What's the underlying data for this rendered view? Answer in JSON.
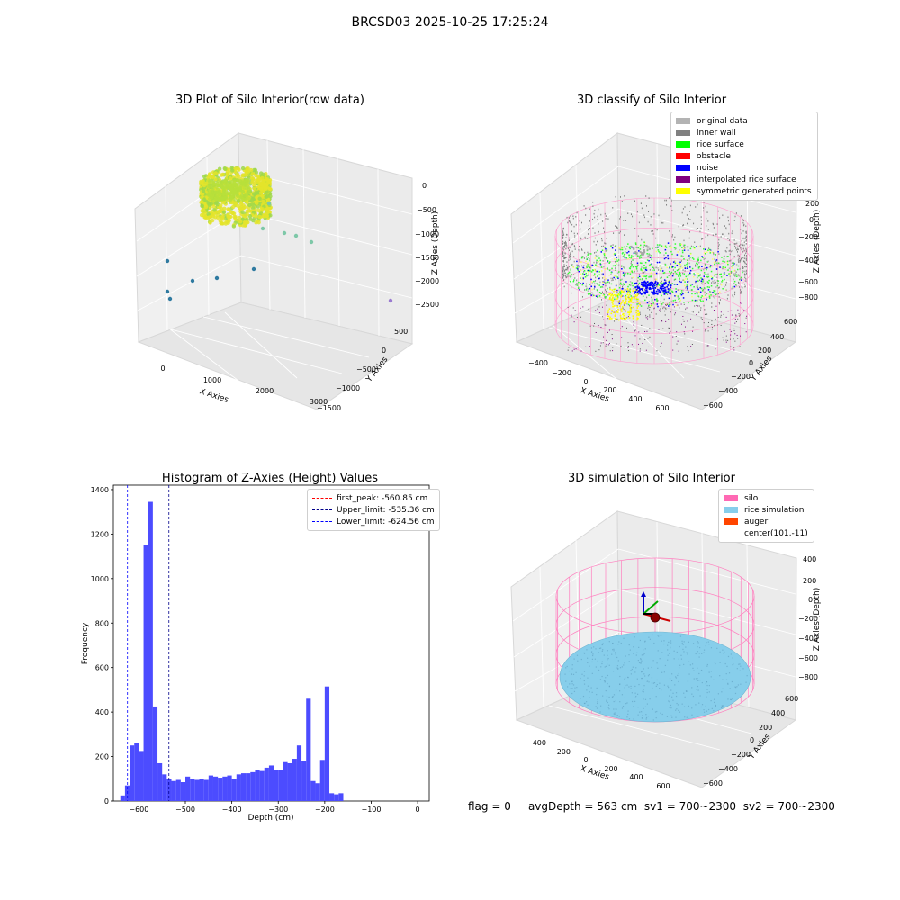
{
  "figure_title": "BRCSD03 2025-10-25 17:25:24",
  "status": {
    "flag": "flag = 0",
    "avg_depth": "avgDepth = 563 cm",
    "sv1": "sv1 = 700~2300",
    "sv2": "sv2 = 700~2300"
  },
  "chart_data": [
    {
      "type": "scatter",
      "title": "3D Plot of Silo Interior(row data)",
      "xlabel": "X Axies",
      "ylabel": "Y Axies",
      "zlabel": "Z Axies (Depth)",
      "x_ticks": [
        "0",
        "1000",
        "2000",
        "3000"
      ],
      "y_ticks": [
        "500",
        "0",
        "−500",
        "−1000",
        "−1500"
      ],
      "z_ticks": [
        "0",
        "−500",
        "−1000",
        "−1500",
        "−2000",
        "−2500"
      ],
      "colors": {
        "high": "#e4e42a",
        "low": "#2f7aa0"
      }
    },
    {
      "type": "scatter",
      "title": "3D classify of Silo Interior",
      "xlabel": "X Axies",
      "ylabel": "Y Axies",
      "zlabel": "Z Axies (Depth)",
      "x_ticks": [
        "−400",
        "−200",
        "0",
        "200",
        "400",
        "600"
      ],
      "y_ticks": [
        "600",
        "400",
        "200",
        "0",
        "−200",
        "−400",
        "−600"
      ],
      "z_ticks": [
        "200",
        "0",
        "−200",
        "−400",
        "−600",
        "−800"
      ],
      "legend": [
        {
          "label": "original data",
          "color": "#b3b3b3"
        },
        {
          "label": "inner wall",
          "color": "#808080"
        },
        {
          "label": "rice surface",
          "color": "#00ff00"
        },
        {
          "label": "obstacle",
          "color": "#ff0000"
        },
        {
          "label": "noise",
          "color": "#0000ff"
        },
        {
          "label": "interpolated rice surface",
          "color": "#800080"
        },
        {
          "label": "symmetric generated points",
          "color": "#ffff00"
        }
      ]
    },
    {
      "type": "bar",
      "title": "Histogram of Z-Axies (Height) Values",
      "xlabel": "Depth (cm)",
      "ylabel": "Frequency",
      "xlim": [
        -655,
        25
      ],
      "ylim": [
        0,
        1420
      ],
      "bin_start": -640,
      "bin_width": 10,
      "bar_color": "#4c4cff",
      "values": [
        25,
        70,
        250,
        260,
        225,
        1150,
        1345,
        425,
        170,
        120,
        100,
        90,
        95,
        85,
        110,
        100,
        95,
        100,
        95,
        115,
        110,
        105,
        110,
        115,
        100,
        120,
        125,
        125,
        130,
        140,
        135,
        150,
        160,
        140,
        140,
        175,
        170,
        190,
        250,
        180,
        460,
        90,
        80,
        185,
        515,
        35,
        30,
        35
      ],
      "x_ticks": [
        -600,
        -500,
        -400,
        -300,
        -200,
        -100,
        0
      ],
      "x_tick_labels": [
        "−600",
        "−500",
        "−400",
        "−300",
        "−200",
        "−100",
        "0"
      ],
      "y_ticks": [
        0,
        200,
        400,
        600,
        800,
        1000,
        1200,
        1400
      ],
      "lines": [
        {
          "label": "first_peak: -560.85 cm",
          "x": -560.85,
          "color": "#ff0000"
        },
        {
          "label": "Upper_limit: -535.36 cm",
          "x": -535.36,
          "color": "#00008b"
        },
        {
          "label": "Lower_limit: -624.56 cm",
          "x": -624.56,
          "color": "#0000ff"
        }
      ]
    },
    {
      "type": "scatter",
      "title": "3D simulation of Silo Interior",
      "xlabel": "X Axies",
      "ylabel": "Y Axies",
      "zlabel": "Z Axies (Depth)",
      "x_ticks": [
        "−400",
        "−200",
        "0",
        "200",
        "400",
        "600"
      ],
      "y_ticks": [
        "600",
        "400",
        "200",
        "0",
        "−200",
        "−400",
        "−600"
      ],
      "z_ticks": [
        "400",
        "200",
        "0",
        "−200",
        "−400",
        "−600",
        "−800"
      ],
      "legend": [
        {
          "label": "silo",
          "color": "#ff69b4"
        },
        {
          "label": "rice simulation",
          "color": "#87ceeb"
        },
        {
          "label": "auger",
          "color": "#ff4500"
        },
        {
          "label": "center(101,-11)",
          "color": ""
        }
      ]
    }
  ]
}
